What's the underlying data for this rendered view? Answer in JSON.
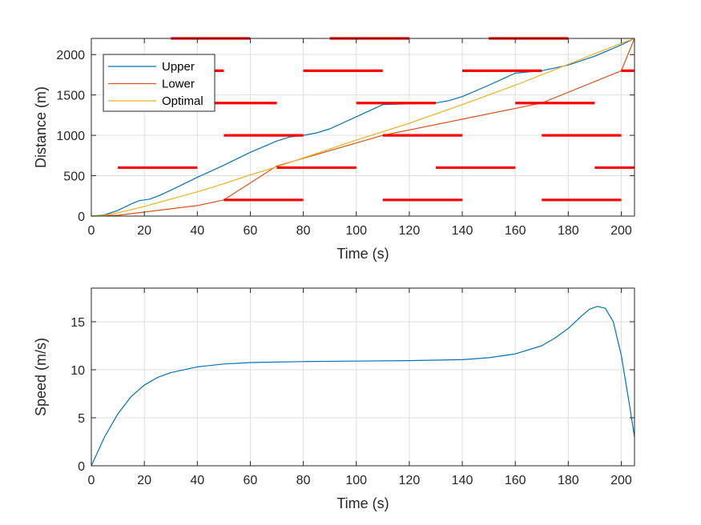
{
  "chart_data": [
    {
      "type": "line",
      "xlabel": "Time (s)",
      "ylabel": "Distance (m)",
      "xlim": [
        0,
        205
      ],
      "ylim": [
        0,
        2200
      ],
      "xticks": [
        0,
        20,
        40,
        60,
        80,
        100,
        120,
        140,
        160,
        180,
        200
      ],
      "yticks": [
        0,
        500,
        1000,
        1500,
        2000
      ],
      "grid": true,
      "legend_position": "top-left",
      "series": [
        {
          "name": "Upper",
          "color": "#0072BD",
          "x": [
            0,
            5,
            10,
            15,
            18,
            22,
            26,
            30,
            40,
            50,
            60,
            70,
            75,
            80,
            85,
            90,
            100,
            110,
            130,
            135,
            140,
            150,
            160,
            170,
            180,
            190,
            200,
            205
          ],
          "y": [
            0,
            15,
            70,
            150,
            190,
            210,
            260,
            320,
            480,
            630,
            790,
            930,
            980,
            1000,
            1030,
            1080,
            1230,
            1380,
            1400,
            1430,
            1480,
            1620,
            1770,
            1800,
            1870,
            1980,
            2120,
            2200
          ]
        },
        {
          "name": "Lower",
          "color": "#D95319",
          "x": [
            0,
            10,
            20,
            30,
            40,
            50,
            70,
            110,
            170,
            200,
            205
          ],
          "y": [
            0,
            10,
            50,
            90,
            130,
            200,
            620,
            1000,
            1400,
            1800,
            2200
          ]
        },
        {
          "name": "Optimal",
          "color": "#EDB120",
          "x": [
            0,
            5,
            10,
            20,
            30,
            40,
            50,
            60,
            70,
            80,
            100,
            120,
            140,
            160,
            180,
            190,
            200,
            205
          ],
          "y": [
            0,
            10,
            40,
            120,
            210,
            300,
            400,
            510,
            610,
            720,
            940,
            1150,
            1380,
            1620,
            1880,
            2010,
            2140,
            2200
          ]
        }
      ],
      "red_phase_segments": [
        {
          "y": 200,
          "x_start": 50,
          "x_end": 80
        },
        {
          "y": 200,
          "x_start": 110,
          "x_end": 140
        },
        {
          "y": 200,
          "x_start": 170,
          "x_end": 200
        },
        {
          "y": 600,
          "x_start": 10,
          "x_end": 40
        },
        {
          "y": 600,
          "x_start": 70,
          "x_end": 100
        },
        {
          "y": 600,
          "x_start": 130,
          "x_end": 160
        },
        {
          "y": 600,
          "x_start": 190,
          "x_end": 205
        },
        {
          "y": 1000,
          "x_start": 50,
          "x_end": 80
        },
        {
          "y": 1000,
          "x_start": 110,
          "x_end": 140
        },
        {
          "y": 1000,
          "x_start": 170,
          "x_end": 200
        },
        {
          "y": 1400,
          "x_start": 40,
          "x_end": 70
        },
        {
          "y": 1400,
          "x_start": 100,
          "x_end": 130
        },
        {
          "y": 1400,
          "x_start": 160,
          "x_end": 190
        },
        {
          "y": 1800,
          "x_start": 20,
          "x_end": 50
        },
        {
          "y": 1800,
          "x_start": 80,
          "x_end": 110
        },
        {
          "y": 1800,
          "x_start": 140,
          "x_end": 170
        },
        {
          "y": 1800,
          "x_start": 200,
          "x_end": 205
        },
        {
          "y": 2200,
          "x_start": 30,
          "x_end": 60
        },
        {
          "y": 2200,
          "x_start": 90,
          "x_end": 120
        },
        {
          "y": 2200,
          "x_start": 150,
          "x_end": 180
        }
      ],
      "red_phase_color": "#FF0000"
    },
    {
      "type": "line",
      "xlabel": "Time (s)",
      "ylabel": "Speed (m/s)",
      "xlim": [
        0,
        205
      ],
      "ylim": [
        0,
        18.5
      ],
      "xticks": [
        0,
        20,
        40,
        60,
        80,
        100,
        120,
        140,
        160,
        180,
        200
      ],
      "yticks": [
        0,
        5,
        10,
        15
      ],
      "grid": true,
      "series": [
        {
          "color": "#0072BD",
          "x": [
            0,
            2,
            5,
            10,
            15,
            20,
            25,
            30,
            40,
            50,
            60,
            80,
            100,
            120,
            140,
            150,
            160,
            170,
            175,
            180,
            185,
            188,
            191,
            194,
            197,
            200,
            203,
            205
          ],
          "y": [
            0,
            1.2,
            3.0,
            5.4,
            7.2,
            8.4,
            9.2,
            9.7,
            10.3,
            10.6,
            10.75,
            10.85,
            10.9,
            10.95,
            11.05,
            11.25,
            11.65,
            12.5,
            13.3,
            14.3,
            15.6,
            16.3,
            16.6,
            16.4,
            15.0,
            11.5,
            6.5,
            3.0
          ]
        }
      ]
    }
  ]
}
